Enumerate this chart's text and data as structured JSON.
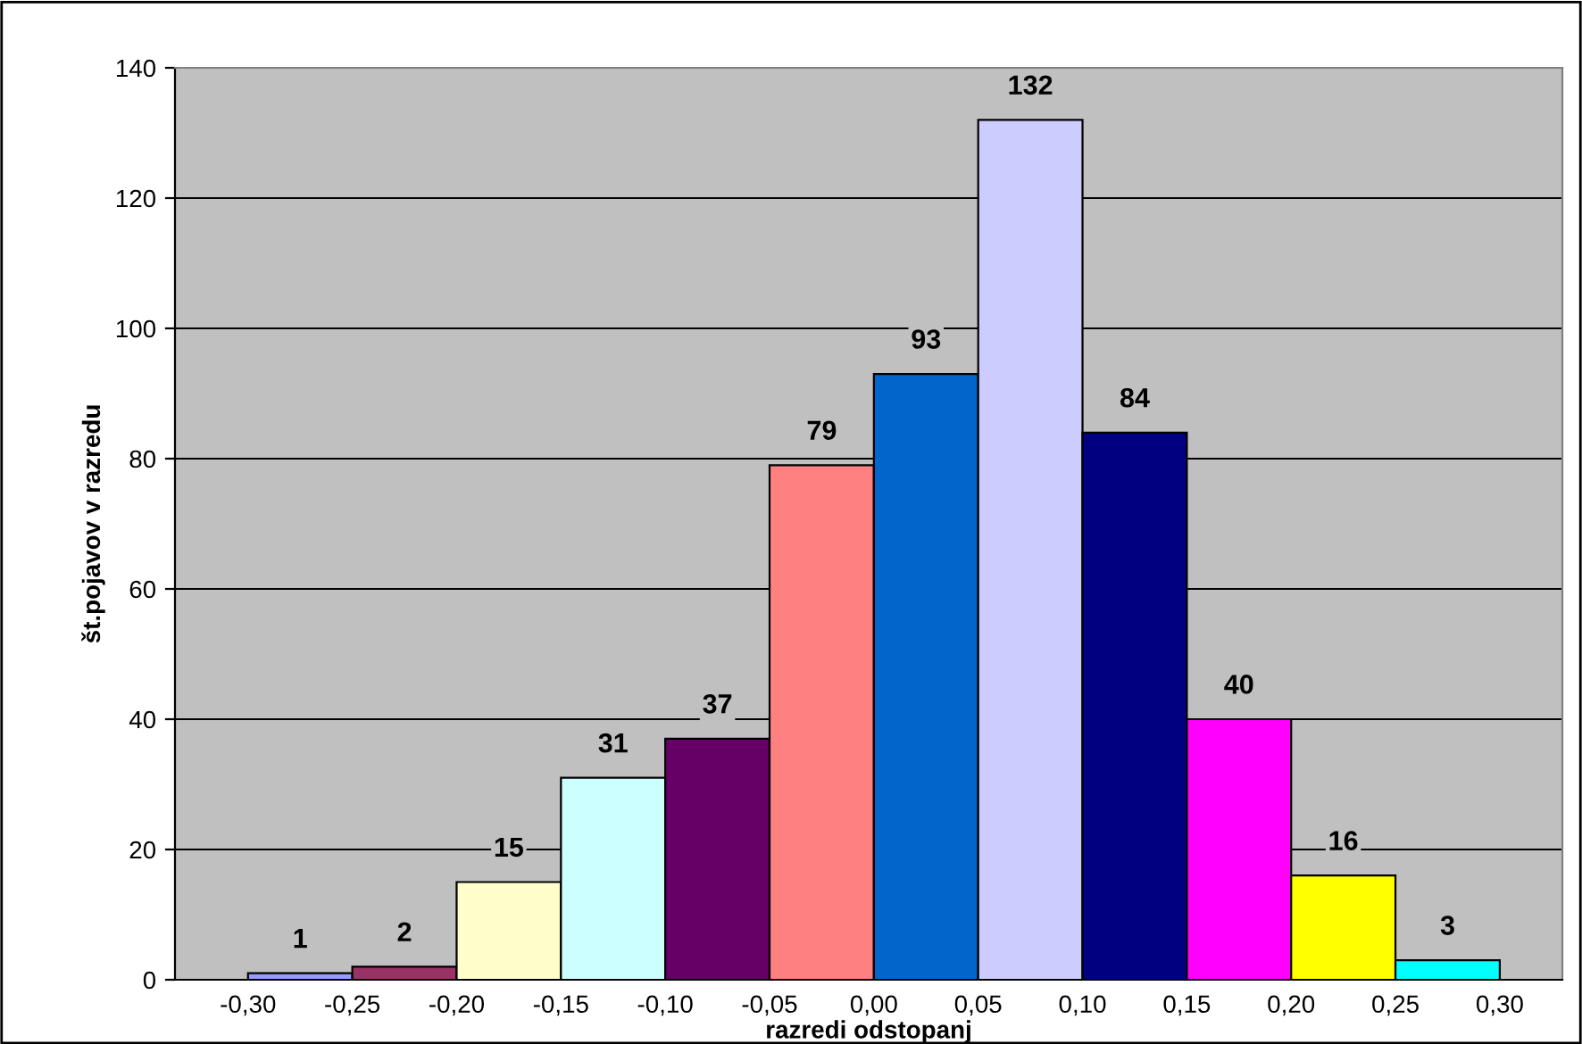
{
  "chart_data": {
    "type": "histogram",
    "xlabel": "razredi odstopanj",
    "ylabel": "št.pojavov v razredu",
    "bins": [
      -0.3,
      -0.25,
      -0.2,
      -0.15,
      -0.1,
      -0.05,
      0.0,
      0.05,
      0.1,
      0.15,
      0.2,
      0.25,
      0.3
    ],
    "values": [
      1,
      2,
      15,
      31,
      37,
      79,
      93,
      132,
      84,
      40,
      16,
      3
    ],
    "colors": [
      "#9999ff",
      "#993366",
      "#ffffcc",
      "#ccffff",
      "#660066",
      "#ff8080",
      "#0066cc",
      "#ccccff",
      "#000080",
      "#ff00ff",
      "#ffff00",
      "#00ffff"
    ],
    "data_labels": true,
    "xlim": [
      -0.335,
      0.33
    ],
    "xticks": [
      {
        "value": -0.3,
        "label": "-0,30"
      },
      {
        "value": -0.25,
        "label": "-0,25"
      },
      {
        "value": -0.2,
        "label": "-0,20"
      },
      {
        "value": -0.15,
        "label": "-0,15"
      },
      {
        "value": -0.1,
        "label": "-0,10"
      },
      {
        "value": -0.05,
        "label": "-0,05"
      },
      {
        "value": 0,
        "label": "0,00"
      },
      {
        "value": 0.05,
        "label": "0,05"
      },
      {
        "value": 0.1,
        "label": "0,10"
      },
      {
        "value": 0.15,
        "label": "0,15"
      },
      {
        "value": 0.2,
        "label": "0,20"
      },
      {
        "value": 0.25,
        "label": "0,25"
      },
      {
        "value": 0.3,
        "label": "0,30"
      }
    ],
    "ylim": [
      0,
      140
    ],
    "yticks": [
      0,
      20,
      40,
      60,
      80,
      100,
      120,
      140
    ],
    "grid": "y"
  }
}
